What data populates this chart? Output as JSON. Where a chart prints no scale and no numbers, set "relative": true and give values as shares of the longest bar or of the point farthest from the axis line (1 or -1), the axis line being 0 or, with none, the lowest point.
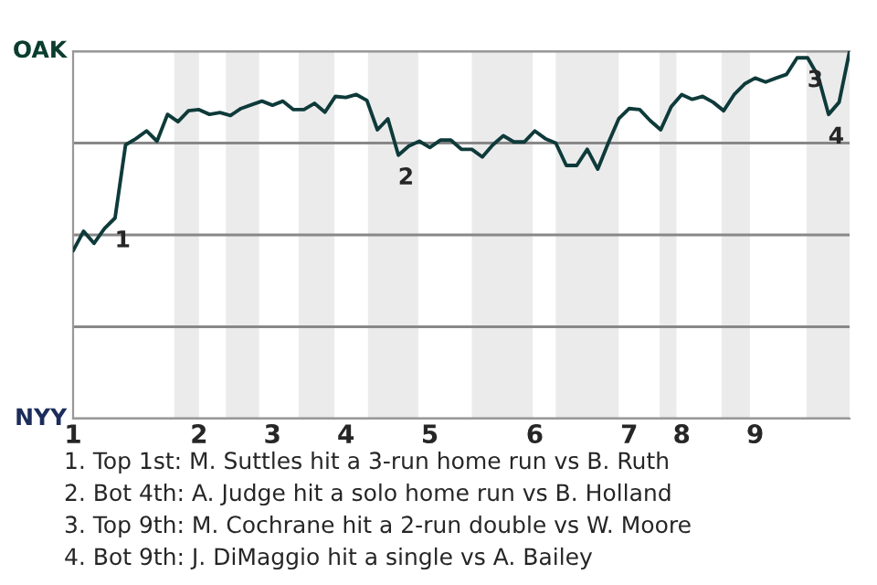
{
  "chart_data": {
    "type": "line",
    "relative": true,
    "categories": [
      "1",
      null,
      null,
      null,
      null,
      null,
      null,
      null,
      null,
      null,
      null,
      null,
      "2",
      null,
      null,
      null,
      null,
      null,
      null,
      "3",
      null,
      null,
      null,
      null,
      null,
      null,
      "4",
      null,
      null,
      null,
      null,
      null,
      null,
      null,
      "5",
      null,
      null,
      null,
      null,
      null,
      null,
      null,
      null,
      null,
      "6",
      null,
      null,
      null,
      null,
      null,
      null,
      null,
      null,
      "7",
      null,
      null,
      null,
      null,
      "8",
      null,
      null,
      null,
      null,
      null,
      null,
      "9",
      null,
      null,
      null,
      null,
      null,
      null,
      null,
      null,
      null
    ],
    "grid": "y",
    "marker": "none",
    "line_style": "solid",
    "series": [
      {
        "color": "#0f3a3a",
        "values": [
          0.457,
          0.51,
          0.477,
          0.518,
          0.546,
          0.745,
          0.762,
          0.783,
          0.755,
          0.828,
          0.808,
          0.838,
          0.841,
          0.828,
          0.833,
          0.825,
          0.844,
          0.854,
          0.864,
          0.853,
          0.864,
          0.841,
          0.841,
          0.858,
          0.834,
          0.877,
          0.874,
          0.882,
          0.866,
          0.786,
          0.816,
          0.717,
          0.742,
          0.755,
          0.738,
          0.758,
          0.758,
          0.733,
          0.733,
          0.712,
          0.745,
          0.77,
          0.753,
          0.753,
          0.783,
          0.762,
          0.75,
          0.689,
          0.689,
          0.733,
          0.679,
          0.75,
          0.816,
          0.844,
          0.841,
          0.811,
          0.786,
          0.849,
          0.882,
          0.869,
          0.877,
          0.861,
          0.838,
          0.882,
          0.911,
          0.927,
          0.916,
          0.927,
          0.937,
          0.982,
          0.982,
          0.932,
          0.828,
          0.861,
          1.0
        ]
      }
    ],
    "annotations": [
      {
        "text": "1",
        "y": 0.546
      },
      {
        "text": "2",
        "y": 0.717
      },
      {
        "text": "3",
        "y": 0.982
      },
      {
        "text": "4",
        "y": 0.828
      },
      "OAK",
      "NYY",
      "1. Top 1st: M. Suttles hit a 3-run home run vs B. Ruth",
      "2. Bot 4th: A. Judge hit a solo home run vs B. Holland",
      "3. Top 9th: M. Cochrane hit a 2-run double vs W. Moore",
      "4. Bot 9th: J. DiMaggio hit a single vs A. Bailey"
    ]
  }
}
